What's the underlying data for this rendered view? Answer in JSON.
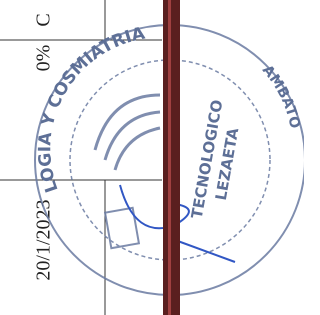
{
  "cells": {
    "letter": "C",
    "percent": "0%",
    "date": "20/1/2023"
  },
  "stamp": {
    "top_arc": "LOGIA Y COSMIATRIA",
    "right_arc": "AMBATO",
    "center_line1": "TECNOLOGICO",
    "center_line2": "LEZAETA"
  }
}
